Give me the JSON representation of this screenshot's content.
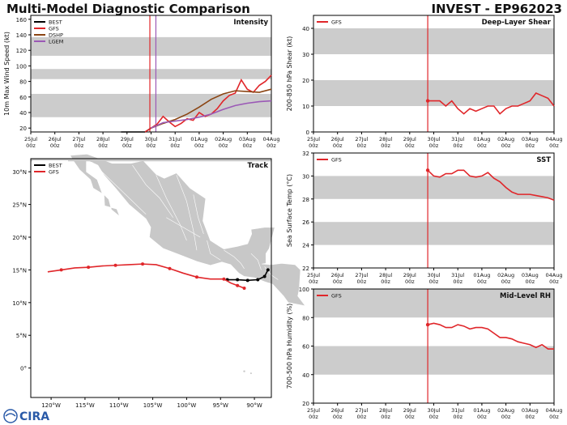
{
  "header": {
    "title_left": "Multi-Model Diagnostic Comparison",
    "title_right": "INVEST - EP962023"
  },
  "logo": {
    "text": "CIRA"
  },
  "colors": {
    "best": "#000000",
    "gfs": "#e0262a",
    "dshp": "#8b4513",
    "lgem": "#9b59b6",
    "band": "#cccccc",
    "land": "#c8c8c8",
    "border": "#ffffff"
  },
  "time_axis": {
    "ticks": [
      "25Jul\n00z",
      "26Jul\n00z",
      "27Jul\n00z",
      "28Jul\n00z",
      "29Jul\n00z",
      "30Jul\n00z",
      "31Jul\n00z",
      "01Aug\n00z",
      "02Aug\n00z",
      "03Aug\n00z",
      "04Aug\n00z"
    ]
  },
  "chart_data": [
    {
      "type": "line",
      "title": "Intensity",
      "ylabel": "10m Max Wind Speed (kt)",
      "ylim": [
        15,
        165
      ],
      "yticks": [
        20,
        40,
        60,
        80,
        100,
        120,
        140,
        160
      ],
      "bands": [
        [
          34,
          64
        ],
        [
          83,
          96
        ],
        [
          113,
          137
        ]
      ],
      "vlines": [
        {
          "x": 4.95,
          "color": "red"
        },
        {
          "x": 5.2,
          "color": "purple"
        }
      ],
      "legend": [
        "BEST",
        "GFS",
        "DSHP",
        "LGEM"
      ],
      "series": [
        {
          "name": "BEST",
          "x": [
            3.75,
            4.0,
            4.25,
            4.5,
            4.75,
            5.0
          ],
          "values": [
            15,
            15,
            15,
            15,
            15,
            20
          ]
        },
        {
          "name": "GFS",
          "x": [
            4.75,
            5.0,
            5.25,
            5.5,
            5.75,
            6.0,
            6.25,
            6.5,
            6.75,
            7.0,
            7.25,
            7.5,
            7.75,
            8.0,
            8.25,
            8.5,
            8.75,
            9.0,
            9.25,
            9.5,
            9.75,
            10.0
          ],
          "values": [
            15,
            20,
            25,
            35,
            28,
            22,
            26,
            32,
            30,
            40,
            35,
            38,
            45,
            55,
            62,
            65,
            82,
            70,
            66,
            75,
            80,
            88
          ]
        },
        {
          "name": "DSHP",
          "x": [
            5.0,
            5.5,
            6.0,
            6.5,
            7.0,
            7.5,
            8.0,
            8.5,
            9.0,
            9.5,
            10.0
          ],
          "values": [
            20,
            26,
            31,
            38,
            47,
            57,
            64,
            68,
            67,
            66,
            70
          ]
        },
        {
          "name": "LGEM",
          "x": [
            5.0,
            5.5,
            6.0,
            6.5,
            7.0,
            7.5,
            8.0,
            8.5,
            9.0,
            9.5,
            10.0
          ],
          "values": [
            20,
            27,
            29,
            31,
            34,
            38,
            44,
            49,
            52,
            54,
            55
          ]
        }
      ]
    },
    {
      "type": "line",
      "title": "Deep-Layer Shear",
      "ylabel": "200-850 hPa Shear (kt)",
      "ylim": [
        0,
        45
      ],
      "yticks": [
        0,
        10,
        20,
        30,
        40
      ],
      "bands": [
        [
          10,
          20
        ],
        [
          30,
          40
        ]
      ],
      "vlines": [
        {
          "x": 4.75,
          "color": "red"
        }
      ],
      "legend": [
        "GFS"
      ],
      "series": [
        {
          "name": "GFS",
          "x": [
            4.75,
            5.0,
            5.25,
            5.5,
            5.75,
            6.0,
            6.25,
            6.5,
            6.75,
            7.0,
            7.25,
            7.5,
            7.75,
            8.0,
            8.25,
            8.5,
            8.75,
            9.0,
            9.25,
            9.5,
            9.75,
            10.0
          ],
          "values": [
            12,
            12,
            12,
            10,
            12,
            9,
            7,
            9,
            8,
            9,
            10,
            10,
            7,
            9,
            10,
            10,
            11,
            12,
            15,
            14,
            13,
            10
          ]
        }
      ]
    },
    {
      "type": "line",
      "title": "SST",
      "ylabel": "Sea Surface Temp (°C)",
      "ylim": [
        22,
        32
      ],
      "yticks": [
        22,
        24,
        26,
        28,
        30,
        32
      ],
      "bands": [
        [
          24,
          26
        ],
        [
          28,
          30
        ]
      ],
      "vlines": [
        {
          "x": 4.75,
          "color": "red"
        }
      ],
      "legend": [
        "GFS"
      ],
      "series": [
        {
          "name": "GFS",
          "x": [
            4.75,
            5.0,
            5.25,
            5.5,
            5.75,
            6.0,
            6.25,
            6.5,
            6.75,
            7.0,
            7.25,
            7.5,
            7.75,
            8.0,
            8.25,
            8.5,
            8.75,
            9.0,
            9.25,
            9.5,
            9.75,
            10.0
          ],
          "values": [
            30.5,
            30.0,
            29.9,
            30.2,
            30.2,
            30.5,
            30.5,
            30.0,
            29.9,
            30.0,
            30.3,
            29.8,
            29.5,
            29.0,
            28.6,
            28.4,
            28.4,
            28.4,
            28.3,
            28.2,
            28.1,
            27.9
          ]
        }
      ]
    },
    {
      "type": "line",
      "title": "Mid-Level RH",
      "ylabel": "700-500 hPa Humidity (%)",
      "ylim": [
        20,
        100
      ],
      "yticks": [
        20,
        40,
        60,
        80,
        100
      ],
      "bands": [
        [
          40,
          60
        ],
        [
          80,
          100
        ]
      ],
      "vlines": [
        {
          "x": 4.75,
          "color": "red"
        }
      ],
      "legend": [
        "GFS"
      ],
      "series": [
        {
          "name": "GFS",
          "x": [
            4.75,
            5.0,
            5.25,
            5.5,
            5.75,
            6.0,
            6.25,
            6.5,
            6.75,
            7.0,
            7.25,
            7.5,
            7.75,
            8.0,
            8.25,
            8.5,
            8.75,
            9.0,
            9.25,
            9.5,
            9.75,
            10.0
          ],
          "values": [
            75,
            76,
            75,
            73,
            73,
            75,
            74,
            72,
            73,
            73,
            72,
            69,
            66,
            66,
            65,
            63,
            62,
            61,
            59,
            61,
            58,
            58
          ]
        }
      ]
    },
    {
      "type": "scatter",
      "title": "Track",
      "legend": [
        "BEST",
        "GFS"
      ],
      "xlim": [
        -123,
        -87.5
      ],
      "ylim": [
        -4.5,
        32
      ],
      "xticks": [
        {
          "v": -120,
          "label": "120°W"
        },
        {
          "v": -115,
          "label": "115°W"
        },
        {
          "v": -110,
          "label": "110°W"
        },
        {
          "v": -105,
          "label": "105°W"
        },
        {
          "v": -100,
          "label": "100°W"
        },
        {
          "v": -95,
          "label": "95°W"
        },
        {
          "v": -90,
          "label": "90°W"
        }
      ],
      "yticks": [
        {
          "v": 0,
          "label": "0°"
        },
        {
          "v": 5,
          "label": "5°N"
        },
        {
          "v": 10,
          "label": "10°N"
        },
        {
          "v": 15,
          "label": "15°N"
        },
        {
          "v": 20,
          "label": "20°N"
        },
        {
          "v": 25,
          "label": "25°N"
        },
        {
          "v": 30,
          "label": "30°N"
        }
      ],
      "series": [
        {
          "name": "BEST",
          "lon": [
            -88.0,
            -88.5,
            -89.5,
            -91.0,
            -92.5,
            -94.0
          ],
          "lat": [
            15.0,
            14.0,
            13.5,
            13.4,
            13.5,
            13.5
          ]
        },
        {
          "name": "GFS",
          "lon": [
            -120.5,
            -118.5,
            -116.5,
            -114.5,
            -112.5,
            -110.5,
            -108.5,
            -106.5,
            -104.5,
            -102.5,
            -100.5,
            -98.5,
            -96.5,
            -94.5,
            -93.5,
            -92.5,
            -91.5
          ],
          "lat": [
            14.7,
            15.0,
            15.3,
            15.4,
            15.6,
            15.7,
            15.8,
            15.9,
            15.8,
            15.2,
            14.5,
            13.9,
            13.6,
            13.6,
            13.0,
            12.6,
            12.2
          ]
        }
      ]
    }
  ]
}
